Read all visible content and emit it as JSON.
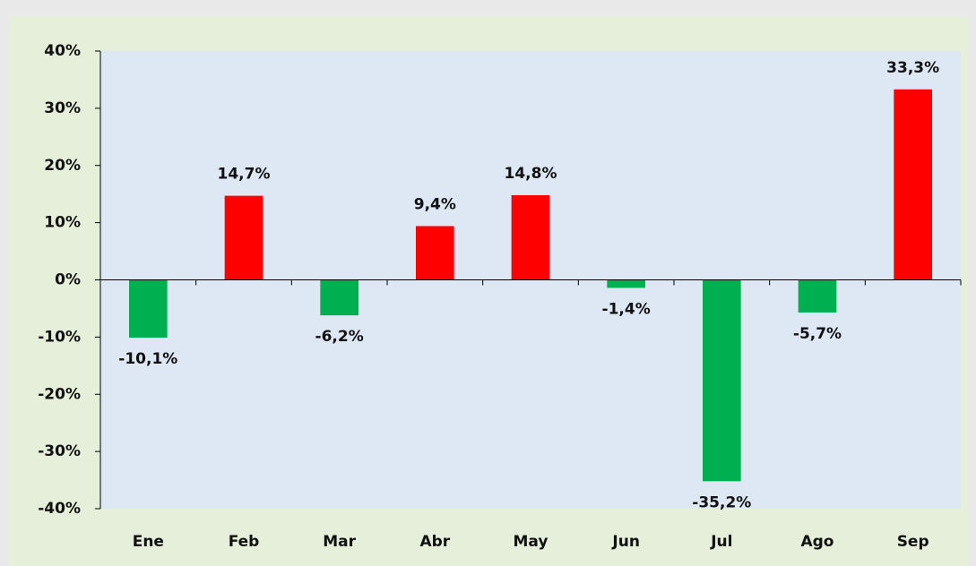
{
  "chart_data": {
    "type": "bar",
    "categories": [
      "Ene",
      "Feb",
      "Mar",
      "Abr",
      "May",
      "Jun",
      "Jul",
      "Ago",
      "Sep"
    ],
    "values": [
      -10.1,
      14.7,
      -6.2,
      9.4,
      14.8,
      -1.4,
      -35.2,
      -5.7,
      33.3
    ],
    "value_labels": [
      "-10,1%",
      "14,7%",
      "-6,2%",
      "9,4%",
      "14,8%",
      "-1,4%",
      "-35,2%",
      "-5,7%",
      "33,3%"
    ],
    "colors": [
      "#00b050",
      "#ff0000",
      "#00b050",
      "#ff0000",
      "#ff0000",
      "#00b050",
      "#00b050",
      "#00b050",
      "#ff0000"
    ],
    "ylim": [
      -40,
      40
    ],
    "yticks": [
      {
        "value": -40,
        "label": "-40%"
      },
      {
        "value": -30,
        "label": "-30%"
      },
      {
        "value": -20,
        "label": "-20%"
      },
      {
        "value": -10,
        "label": "-10%"
      },
      {
        "value": 0,
        "label": "0%"
      },
      {
        "value": 10,
        "label": "10%"
      },
      {
        "value": 20,
        "label": "20%"
      },
      {
        "value": 30,
        "label": "30%"
      },
      {
        "value": 40,
        "label": "40%"
      }
    ],
    "grid": false
  }
}
